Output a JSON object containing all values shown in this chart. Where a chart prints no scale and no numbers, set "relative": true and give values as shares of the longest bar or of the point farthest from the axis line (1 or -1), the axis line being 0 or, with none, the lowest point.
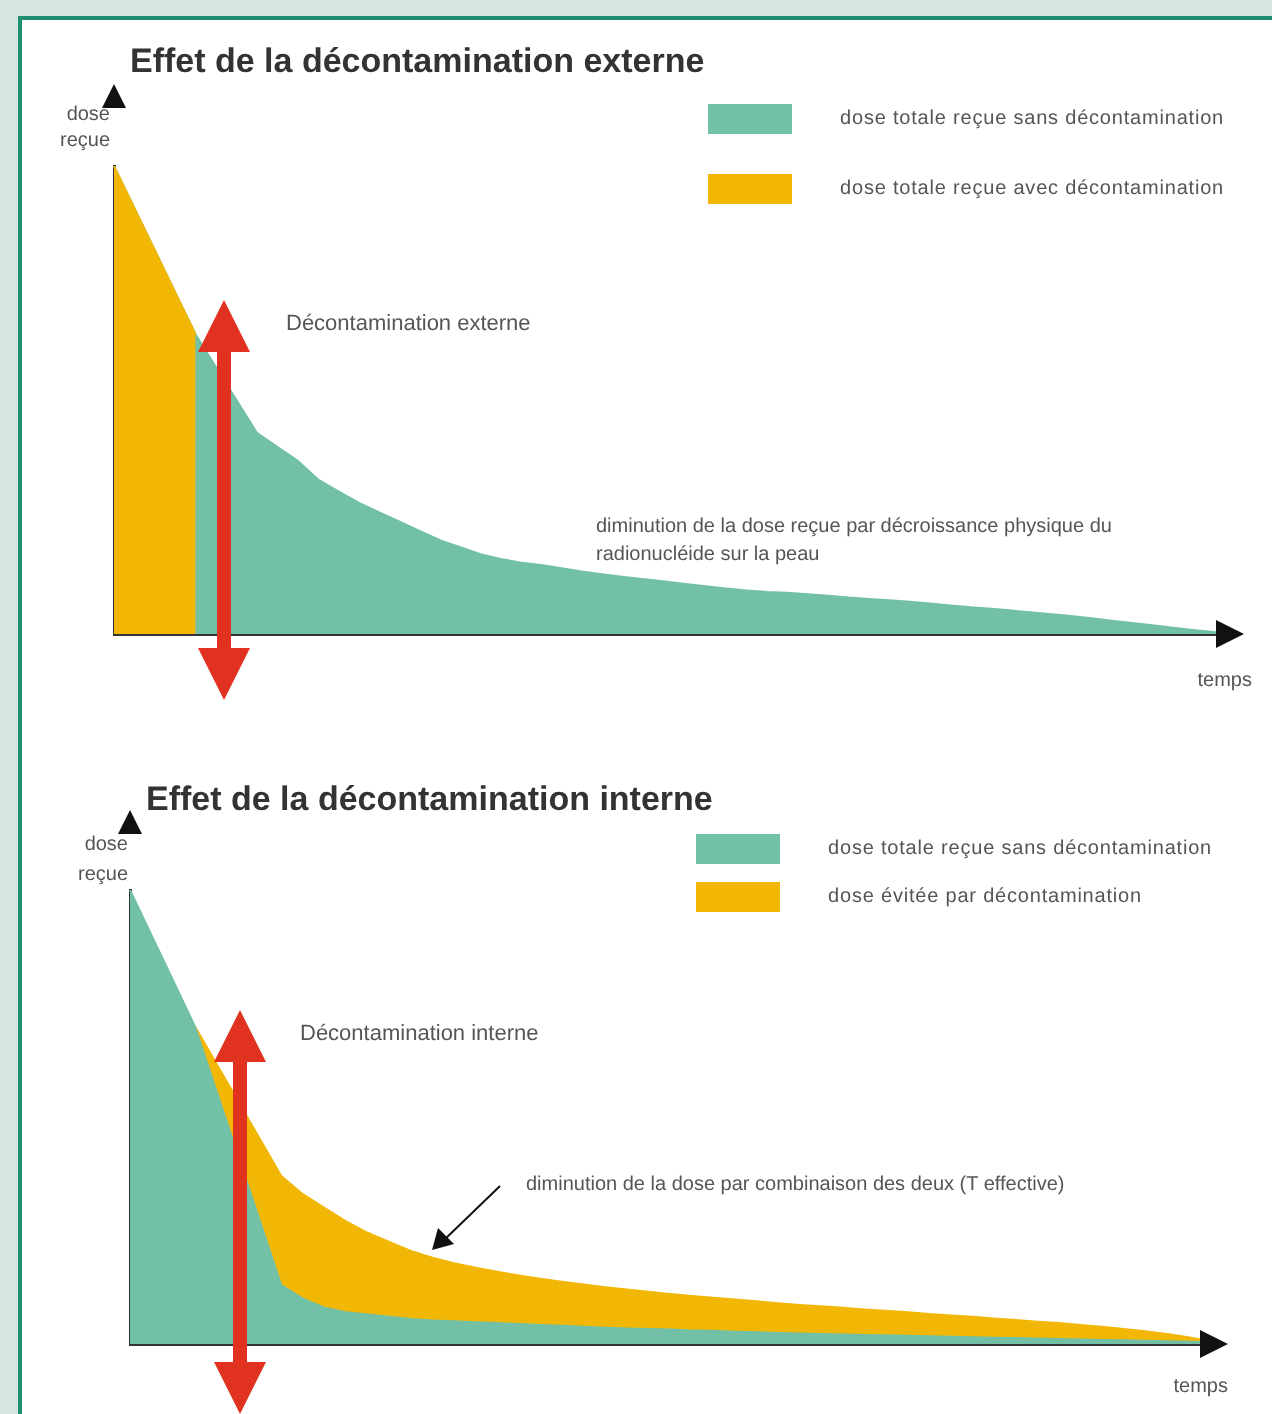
{
  "chart_data": [
    {
      "type": "area",
      "title": "Effet de la décontamination externe",
      "xlabel": "temps",
      "ylabel": "dose reçue",
      "relative": true,
      "legend": "top right",
      "categories": [
        null,
        null,
        null,
        null,
        null,
        null,
        null,
        null,
        null,
        null,
        null,
        null,
        null,
        null,
        null,
        null,
        null,
        null,
        null,
        null,
        null,
        null,
        null,
        null,
        null,
        null,
        null,
        null,
        null,
        null,
        null,
        null,
        null,
        null,
        null,
        null,
        null,
        null,
        null,
        null,
        null,
        null,
        null,
        null,
        null,
        null,
        null,
        null,
        null,
        null,
        null,
        null,
        null,
        null,
        null
      ],
      "series": [
        {
          "name": "dose totale reçue sans décontamination",
          "color": "#72c0a6",
          "values": [
            1.0,
            0.91,
            0.82,
            0.73,
            0.64,
            null,
            null,
            0.43,
            0.4,
            0.37,
            0.33,
            0.305,
            0.28,
            0.26,
            0.24,
            0.22,
            0.2,
            0.185,
            0.17,
            0.16,
            0.152,
            0.147,
            0.14,
            0.133,
            0.127,
            0.122,
            0.117,
            0.112,
            0.107,
            0.102,
            0.097,
            0.093,
            0.09,
            0.088,
            0.085,
            0.082,
            0.078,
            0.075,
            0.072,
            0.069,
            0.065,
            0.061,
            0.057,
            0.054,
            0.05,
            0.046,
            0.042,
            0.038,
            0.033,
            0.028,
            0.023,
            0.018,
            0.013,
            0.008,
            0.004
          ]
        },
        {
          "name": "dose totale reçue avec décontamination",
          "color": "#f2b705",
          "values": [
            1.0,
            0.91,
            0.82,
            0.73,
            0.64,
            null,
            null,
            null,
            null,
            null,
            null,
            null,
            null,
            null,
            null,
            null,
            null,
            null,
            null,
            null,
            null,
            null,
            null,
            null,
            null,
            null,
            null,
            null,
            null,
            null,
            null,
            null,
            null,
            null,
            null,
            null,
            null,
            null,
            null,
            null,
            null,
            null,
            null,
            null,
            null,
            null,
            null,
            null,
            null,
            null,
            null,
            null,
            null,
            null,
            null
          ]
        }
      ],
      "annotations": [
        "Décontamination externe",
        "diminution de la dose reçue par décroissance physique du radionucléide sur la peau"
      ]
    },
    {
      "type": "area",
      "title": "Effet de la décontamination interne",
      "xlabel": "temps",
      "ylabel": "dose reçue",
      "relative": true,
      "stacked": true,
      "legend": "top right",
      "categories": [
        null,
        null,
        null,
        null,
        null,
        null,
        null,
        null,
        null,
        null,
        null,
        null,
        null,
        null,
        null,
        null,
        null,
        null,
        null,
        null,
        null,
        null,
        null,
        null,
        null,
        null,
        null,
        null,
        null,
        null,
        null,
        null,
        null,
        null,
        null,
        null,
        null,
        null,
        null,
        null,
        null,
        null,
        null,
        null,
        null,
        null,
        null,
        null,
        null,
        null,
        null
      ],
      "series": [
        {
          "name": "dose totale reçue sans décontamination",
          "color": "#72c0a6",
          "values": [
            1.0,
            0.9,
            0.8,
            0.7,
            null,
            null,
            null,
            0.13,
            0.1,
            0.08,
            0.07,
            0.065,
            0.06,
            0.055,
            0.052,
            0.05,
            0.048,
            0.046,
            0.044,
            0.042,
            0.04,
            0.038,
            0.036,
            0.034,
            0.033,
            0.032,
            0.03,
            0.029,
            0.027,
            0.026,
            0.024,
            0.023,
            0.022,
            0.021,
            0.02,
            0.019,
            0.018,
            0.017,
            0.016,
            0.015,
            0.014,
            0.013,
            0.012,
            0.011,
            0.01,
            0.009,
            0.008,
            0.007,
            0.006,
            0.005,
            0.004
          ]
        },
        {
          "name": "dose évitée par décontamination",
          "color": "#f2b705",
          "values": [
            null,
            null,
            null,
            0,
            null,
            null,
            null,
            0.24,
            0.23,
            0.22,
            0.2,
            0.18,
            0.165,
            0.15,
            0.138,
            0.128,
            0.12,
            0.113,
            0.107,
            0.102,
            0.097,
            0.093,
            0.089,
            0.086,
            0.082,
            0.078,
            0.076,
            0.073,
            0.071,
            0.068,
            0.066,
            0.063,
            0.061,
            0.059,
            0.056,
            0.054,
            0.052,
            0.049,
            0.047,
            0.045,
            0.042,
            0.04,
            0.037,
            0.035,
            0.032,
            0.029,
            0.025,
            0.021,
            0.016,
            0.01,
            0.002
          ]
        }
      ],
      "annotations": [
        "Décontamination interne",
        "diminution de la dose par combinaison des deux (T effective)"
      ]
    }
  ]
}
